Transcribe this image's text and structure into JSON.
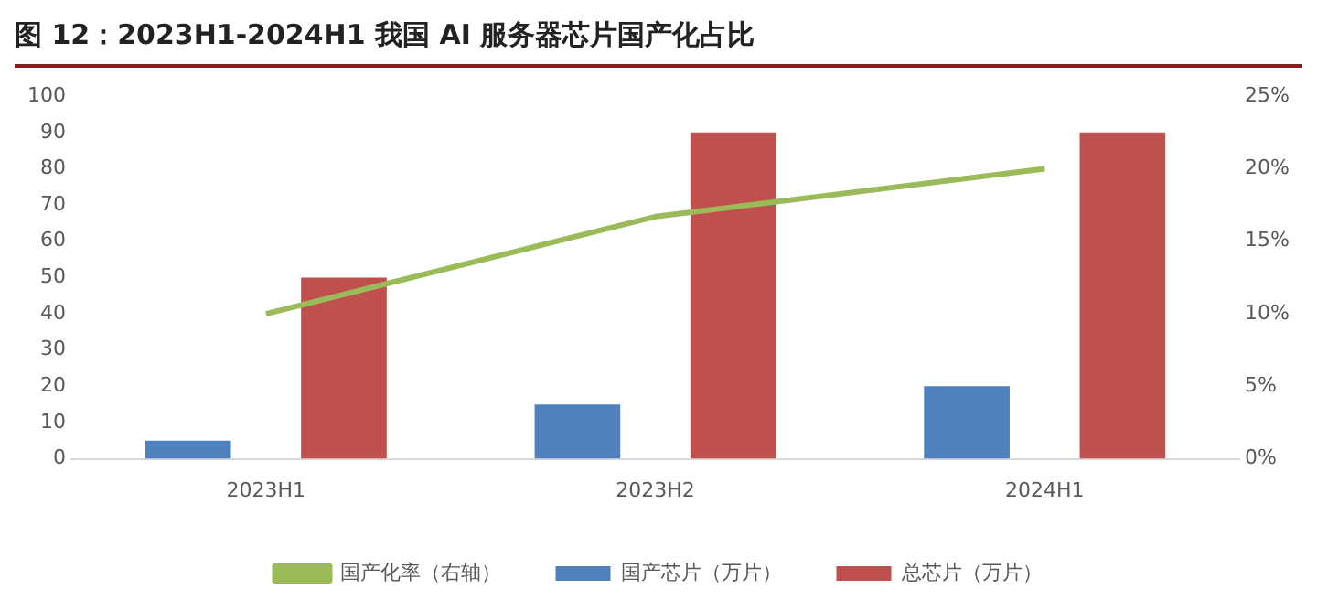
{
  "chart_data": {
    "type": "bar",
    "title": "图 12：2023H1-2024H1 我国 AI 服务器芯片国产化占比",
    "categories": [
      "2023H1",
      "2023H2",
      "2024H1"
    ],
    "series": [
      {
        "name": "国产芯片（万片）",
        "color": "#4f81bd",
        "values": [
          5,
          15,
          20
        ]
      },
      {
        "name": "总芯片（万片）",
        "color": "#c0504d",
        "values": [
          50,
          90,
          90
        ]
      },
      {
        "name": "国产化率（右轴）",
        "color": "#9bbb59",
        "type": "line",
        "axis": "y2",
        "values": [
          10,
          16.7,
          20
        ]
      }
    ],
    "ylim": [
      0,
      100
    ],
    "yticks": [
      0,
      10,
      20,
      30,
      40,
      50,
      60,
      70,
      80,
      90,
      100
    ],
    "y2lim": [
      0,
      25
    ],
    "y2ticks": [
      {
        "value": 0,
        "label": "0%"
      },
      {
        "value": 5,
        "label": "5%"
      },
      {
        "value": 10,
        "label": "10%"
      },
      {
        "value": 15,
        "label": "15%"
      },
      {
        "value": 20,
        "label": "20%"
      },
      {
        "value": 25,
        "label": "25%"
      }
    ],
    "grid": false,
    "legend": "bottom",
    "marker": "none",
    "line_style": "solid"
  }
}
